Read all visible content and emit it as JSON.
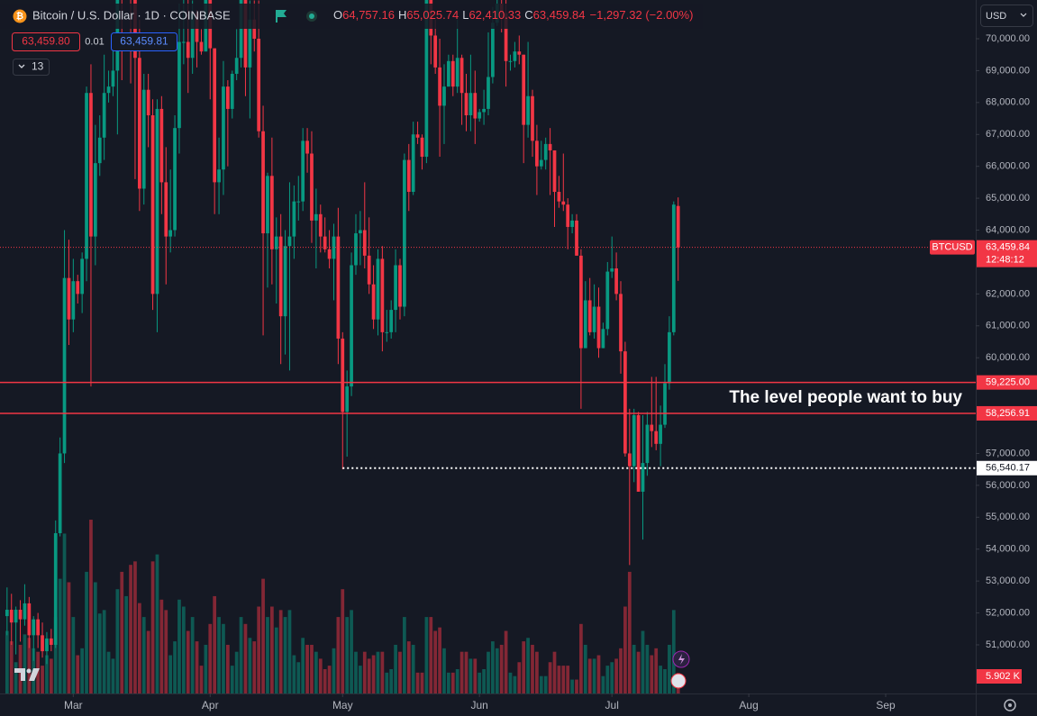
{
  "chart_data": {
    "type": "candlestick",
    "title": "Bitcoin / U.S. Dollar · 1D · COINBASE",
    "ohlc_keys": [
      "O",
      "H",
      "L",
      "C"
    ],
    "ohlc_labels": [
      "64,757.16",
      "65,025.74",
      "62,410.33",
      "63,459.84"
    ],
    "change_label": "−1,297.32 (−2.00%)",
    "sell_label": "63,459.80",
    "spread_label": "0.01",
    "buy_label": "63,459.81",
    "indicator_count": "13",
    "currency": "USD",
    "symbol": "BTCUSD",
    "last_price_label": "63,459.84",
    "countdown": "12:48:12",
    "annotation": "The level people want to buy",
    "up_color": "#089981",
    "down_color": "#f23645",
    "grid": false,
    "xlim": [
      -1.6,
      219.4
    ],
    "xticks": [
      {
        "value": 15,
        "label": "Mar"
      },
      {
        "value": 46,
        "label": "Apr"
      },
      {
        "value": 76,
        "label": "May"
      },
      {
        "value": 107,
        "label": "Jun"
      },
      {
        "value": 137,
        "label": "Jul"
      },
      {
        "value": 168,
        "label": "Aug"
      },
      {
        "value": 199,
        "label": "Sep"
      }
    ],
    "ylim": [
      49475,
      71214
    ],
    "yticks": [
      {
        "value": 51000,
        "label": "51,000.00"
      },
      {
        "value": 52000,
        "label": "52,000.00"
      },
      {
        "value": 53000,
        "label": "53,000.00"
      },
      {
        "value": 54000,
        "label": "54,000.00"
      },
      {
        "value": 55000,
        "label": "55,000.00"
      },
      {
        "value": 56000,
        "label": "56,000.00"
      },
      {
        "value": 57000,
        "label": "57,000.00"
      },
      {
        "value": 60000,
        "label": "60,000.00"
      },
      {
        "value": 61000,
        "label": "61,000.00"
      },
      {
        "value": 62000,
        "label": "62,000.00"
      },
      {
        "value": 64000,
        "label": "64,000.00"
      },
      {
        "value": 65000,
        "label": "65,000.00"
      },
      {
        "value": 66000,
        "label": "66,000.00"
      },
      {
        "value": 67000,
        "label": "67,000.00"
      },
      {
        "value": 68000,
        "label": "68,000.00"
      },
      {
        "value": 69000,
        "label": "69,000.00"
      },
      {
        "value": 70000,
        "label": "70,000.00"
      }
    ],
    "levels": [
      {
        "value": 59225,
        "label": "59,225.00",
        "color": "#f23645",
        "style": "solid",
        "start": -1.6
      },
      {
        "value": 58256.91,
        "label": "58,256.91",
        "color": "#f23645",
        "style": "solid",
        "start": -1.6
      },
      {
        "value": 56540.17,
        "label": "56,540.17",
        "color": "#ffffff",
        "style": "dotted",
        "start": 76
      }
    ],
    "ohlc": [
      [
        51900,
        52800,
        51300,
        52100
      ],
      [
        52100,
        52600,
        51000,
        51700
      ],
      [
        51700,
        52200,
        50700,
        52100
      ],
      [
        52100,
        52400,
        51100,
        51800
      ],
      [
        51800,
        52900,
        51600,
        52300
      ],
      [
        52300,
        52500,
        50900,
        51300
      ],
      [
        51300,
        51900,
        50500,
        51800
      ],
      [
        51800,
        52000,
        50900,
        51300
      ],
      [
        51300,
        51700,
        50600,
        50800
      ],
      [
        50800,
        51400,
        50400,
        51200
      ],
      [
        51200,
        51500,
        50800,
        51000
      ],
      [
        51000,
        54900,
        50900,
        54500
      ],
      [
        54500,
        57500,
        54400,
        57000
      ],
      [
        57000,
        64000,
        56700,
        62500
      ],
      [
        62500,
        63700,
        60400,
        61200
      ],
      [
        61200,
        63100,
        60800,
        62400
      ],
      [
        62400,
        62600,
        61700,
        62000
      ],
      [
        62000,
        63300,
        61400,
        63100
      ],
      [
        63100,
        68500,
        62400,
        68300
      ],
      [
        68300,
        69200,
        59100,
        63800
      ],
      [
        63800,
        67300,
        62900,
        66100
      ],
      [
        66100,
        67600,
        65700,
        66900
      ],
      [
        66900,
        69500,
        66200,
        68300
      ],
      [
        68300,
        69000,
        68000,
        68500
      ],
      [
        68500,
        69900,
        68200,
        69000
      ],
      [
        69000,
        72900,
        67000,
        72100
      ],
      [
        72100,
        73000,
        68700,
        71500
      ],
      [
        71500,
        73600,
        71300,
        73100
      ],
      [
        73100,
        73800,
        68600,
        71400
      ],
      [
        71400,
        72400,
        65600,
        69400
      ],
      [
        69400,
        70600,
        64600,
        65300
      ],
      [
        65300,
        68900,
        64800,
        68400
      ],
      [
        68400,
        68900,
        66600,
        67600
      ],
      [
        67600,
        68100,
        61500,
        62000
      ],
      [
        62000,
        68100,
        60800,
        67800
      ],
      [
        67800,
        68200,
        64500,
        65500
      ],
      [
        65500,
        66600,
        62300,
        63800
      ],
      [
        63800,
        65900,
        63300,
        64000
      ],
      [
        64000,
        67600,
        63800,
        67200
      ],
      [
        67200,
        71100,
        66400,
        69900
      ],
      [
        69900,
        71500,
        69200,
        69900
      ],
      [
        69900,
        71600,
        68300,
        69400
      ],
      [
        69400,
        71200,
        68900,
        70800
      ],
      [
        70800,
        70900,
        69100,
        69900
      ],
      [
        69900,
        70300,
        69500,
        69600
      ],
      [
        69600,
        71300,
        69600,
        71300
      ],
      [
        71300,
        71300,
        68100,
        69700
      ],
      [
        69700,
        69700,
        64500,
        65500
      ],
      [
        65500,
        66900,
        64500,
        65900
      ],
      [
        65900,
        69300,
        65100,
        68500
      ],
      [
        68500,
        68700,
        66000,
        67800
      ],
      [
        67800,
        69000,
        67500,
        68900
      ],
      [
        68900,
        70300,
        68700,
        69400
      ],
      [
        69400,
        72700,
        69100,
        71600
      ],
      [
        71600,
        71700,
        68200,
        69100
      ],
      [
        69100,
        71200,
        67500,
        70600
      ],
      [
        70600,
        71200,
        69600,
        70000
      ],
      [
        70000,
        71200,
        66900,
        67100
      ],
      [
        67100,
        67900,
        60700,
        63900
      ],
      [
        63900,
        65800,
        62200,
        65700
      ],
      [
        65700,
        66900,
        62300,
        63400
      ],
      [
        63400,
        64400,
        61700,
        63800
      ],
      [
        63800,
        64500,
        59800,
        61300
      ],
      [
        61300,
        64000,
        60100,
        63500
      ],
      [
        63500,
        65500,
        59600,
        63800
      ],
      [
        63800,
        65400,
        63100,
        64900
      ],
      [
        64900,
        65700,
        64300,
        64900
      ],
      [
        64900,
        67200,
        64600,
        66800
      ],
      [
        66800,
        67200,
        65800,
        66400
      ],
      [
        66400,
        67100,
        63600,
        64300
      ],
      [
        64300,
        65300,
        62800,
        64500
      ],
      [
        64500,
        64800,
        63300,
        63800
      ],
      [
        63800,
        64400,
        63300,
        63400
      ],
      [
        63400,
        64000,
        62800,
        63100
      ],
      [
        63100,
        64200,
        61800,
        63800
      ],
      [
        63800,
        64700,
        59800,
        60600
      ],
      [
        60600,
        60800,
        56500,
        58300
      ],
      [
        58300,
        59600,
        56900,
        59100
      ],
      [
        59100,
        63300,
        58800,
        62900
      ],
      [
        62900,
        64500,
        62600,
        63900
      ],
      [
        63900,
        64600,
        62900,
        64000
      ],
      [
        64000,
        65500,
        62800,
        63200
      ],
      [
        63200,
        64400,
        62000,
        62300
      ],
      [
        62300,
        62900,
        60900,
        61200
      ],
      [
        61200,
        63400,
        60700,
        63100
      ],
      [
        63100,
        63500,
        60200,
        60800
      ],
      [
        60800,
        61500,
        60500,
        60800
      ],
      [
        60800,
        61800,
        60600,
        61500
      ],
      [
        61500,
        63400,
        60800,
        62900
      ],
      [
        62900,
        63100,
        61200,
        61600
      ],
      [
        61600,
        66400,
        61300,
        66200
      ],
      [
        66200,
        66700,
        64600,
        65200
      ],
      [
        65200,
        67400,
        65100,
        67000
      ],
      [
        67000,
        67400,
        66700,
        66900
      ],
      [
        66900,
        67000,
        65900,
        66300
      ],
      [
        66300,
        71400,
        66100,
        71400
      ],
      [
        71400,
        71900,
        69200,
        70100
      ],
      [
        70100,
        70600,
        68900,
        69100
      ],
      [
        69100,
        70000,
        66300,
        67900
      ],
      [
        67900,
        69200,
        66700,
        68500
      ],
      [
        68500,
        69500,
        68500,
        69300
      ],
      [
        69300,
        69500,
        68200,
        68500
      ],
      [
        68500,
        70600,
        68300,
        69400
      ],
      [
        69400,
        69500,
        67300,
        68300
      ],
      [
        68300,
        68900,
        67100,
        67600
      ],
      [
        67600,
        69500,
        67100,
        68300
      ],
      [
        68300,
        69000,
        66700,
        67500
      ],
      [
        67500,
        67800,
        67400,
        67700
      ],
      [
        67700,
        68400,
        67300,
        67800
      ],
      [
        67800,
        70200,
        67600,
        68800
      ],
      [
        68800,
        71000,
        68600,
        70500
      ],
      [
        70500,
        71700,
        70400,
        71100
      ],
      [
        71100,
        71900,
        70200,
        70800
      ],
      [
        70800,
        71900,
        68500,
        69300
      ],
      [
        69300,
        69500,
        69000,
        69300
      ],
      [
        69300,
        69900,
        69100,
        69600
      ],
      [
        69600,
        70100,
        69200,
        69500
      ],
      [
        69500,
        69500,
        66100,
        67300
      ],
      [
        67300,
        69900,
        66900,
        68200
      ],
      [
        68200,
        68400,
        66300,
        66800
      ],
      [
        66800,
        67300,
        65100,
        66000
      ],
      [
        66000,
        66800,
        65900,
        66200
      ],
      [
        66200,
        66900,
        65900,
        66700
      ],
      [
        66700,
        67200,
        65100,
        66500
      ],
      [
        66500,
        66500,
        64100,
        65200
      ],
      [
        65200,
        65700,
        64700,
        64900
      ],
      [
        64900,
        66400,
        64600,
        64800
      ],
      [
        64800,
        65000,
        63400,
        64100
      ],
      [
        64100,
        64500,
        63900,
        64300
      ],
      [
        64300,
        64500,
        63200,
        63200
      ],
      [
        63200,
        63400,
        58400,
        60300
      ],
      [
        60300,
        62400,
        60300,
        61800
      ],
      [
        61800,
        62500,
        60700,
        60800
      ],
      [
        60800,
        62300,
        60600,
        61600
      ],
      [
        61600,
        62200,
        60000,
        60300
      ],
      [
        60300,
        61100,
        60300,
        60900
      ],
      [
        60900,
        63000,
        60700,
        62700
      ],
      [
        62700,
        63800,
        62500,
        62800
      ],
      [
        62800,
        63300,
        61800,
        62000
      ],
      [
        62000,
        62400,
        59500,
        60200
      ],
      [
        60200,
        60500,
        56900,
        57000
      ],
      [
        57000,
        58400,
        53500,
        56600
      ],
      [
        56600,
        58400,
        56100,
        58200
      ],
      [
        58200,
        58300,
        55800,
        55800
      ],
      [
        55800,
        58200,
        54300,
        56700
      ],
      [
        56700,
        58300,
        56300,
        57900
      ],
      [
        57900,
        59400,
        57200,
        57700
      ],
      [
        57700,
        59400,
        57100,
        57300
      ],
      [
        57300,
        58500,
        56600,
        57900
      ],
      [
        57900,
        59800,
        57800,
        59200
      ],
      [
        59200,
        61300,
        59000,
        60800
      ],
      [
        60800,
        64900,
        60700,
        64800
      ],
      [
        64757.16,
        65025.74,
        62410.33,
        63459.84
      ]
    ],
    "volume": {
      "ylim": [
        0,
        199.5
      ],
      "last_value_label": "5.902 K",
      "values": [
        18,
        15,
        9,
        14,
        17,
        16,
        13,
        12,
        8,
        11,
        10,
        22,
        33,
        46,
        32,
        22,
        11,
        13,
        35,
        50,
        32,
        23,
        24,
        12,
        10,
        30,
        35,
        28,
        37,
        38,
        26,
        22,
        18,
        38,
        40,
        27,
        24,
        11,
        15,
        27,
        25,
        18,
        22,
        15,
        8,
        14,
        20,
        28,
        22,
        20,
        14,
        8,
        12,
        22,
        20,
        16,
        15,
        25,
        33,
        22,
        25,
        19,
        24,
        22,
        24,
        11,
        9,
        16,
        14,
        14,
        12,
        10,
        7,
        8,
        13,
        22,
        30,
        22,
        24,
        12,
        8,
        12,
        10,
        11,
        12,
        12,
        6,
        7,
        14,
        12,
        22,
        15,
        14,
        6,
        6,
        22,
        22,
        18,
        19,
        13,
        6,
        6,
        7,
        12,
        12,
        10,
        10,
        6,
        7,
        12,
        15,
        13,
        14,
        18,
        6,
        5,
        9,
        15,
        16,
        14,
        12,
        5,
        5,
        9,
        12,
        8,
        8,
        8,
        4,
        4,
        20,
        14,
        10,
        10,
        11,
        5,
        8,
        9,
        10,
        13,
        25,
        35,
        14,
        12,
        18,
        14,
        11,
        13,
        8,
        7,
        14,
        24,
        5.902
      ]
    }
  }
}
